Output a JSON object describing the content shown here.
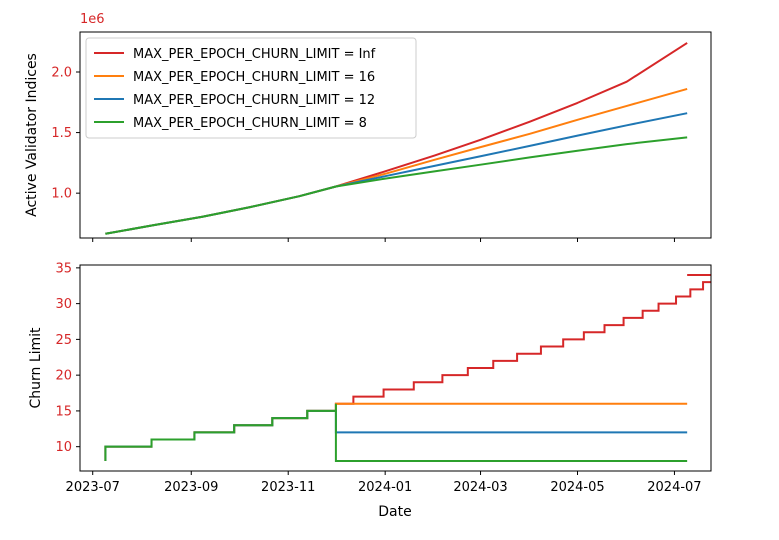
{
  "chart_data": [
    {
      "type": "line",
      "title": "",
      "xlabel": "",
      "ylabel": "Active Validator Indices",
      "offset_label": "1e6",
      "ylim": [
        0.63,
        2.33
      ],
      "yticks": [
        1.0,
        1.5,
        2.0
      ],
      "ytick_labels": [
        "1.0",
        "1.5",
        "2.0"
      ],
      "tick_color": "#d62728",
      "x_range": [
        "2023-06-23",
        "2024-07-24"
      ],
      "legend_position": "upper-left",
      "series": [
        {
          "name": "MAX_PER_EPOCH_CHURN_LIMIT = Inf",
          "color": "#d62728",
          "points": [
            [
              "2023-07-09",
              0.665
            ],
            [
              "2023-08-08",
              0.735
            ],
            [
              "2023-09-08",
              0.805
            ],
            [
              "2023-10-08",
              0.885
            ],
            [
              "2023-11-08",
              0.975
            ],
            [
              "2023-12-01",
              1.055
            ],
            [
              "2024-01-01",
              1.18
            ],
            [
              "2024-02-01",
              1.31
            ],
            [
              "2024-03-01",
              1.44
            ],
            [
              "2024-04-01",
              1.59
            ],
            [
              "2024-05-01",
              1.745
            ],
            [
              "2024-06-01",
              1.92
            ],
            [
              "2024-07-09",
              2.24
            ]
          ]
        },
        {
          "name": "MAX_PER_EPOCH_CHURN_LIMIT = 16",
          "color": "#ff7f0e",
          "points": [
            [
              "2023-07-09",
              0.665
            ],
            [
              "2023-08-08",
              0.735
            ],
            [
              "2023-09-08",
              0.805
            ],
            [
              "2023-10-08",
              0.885
            ],
            [
              "2023-11-08",
              0.975
            ],
            [
              "2023-12-01",
              1.055
            ],
            [
              "2024-01-01",
              1.16
            ],
            [
              "2024-02-01",
              1.275
            ],
            [
              "2024-03-01",
              1.38
            ],
            [
              "2024-04-01",
              1.49
            ],
            [
              "2024-05-01",
              1.605
            ],
            [
              "2024-06-01",
              1.72
            ],
            [
              "2024-07-09",
              1.86
            ]
          ]
        },
        {
          "name": "MAX_PER_EPOCH_CHURN_LIMIT = 12",
          "color": "#1f77b4",
          "points": [
            [
              "2023-07-09",
              0.665
            ],
            [
              "2023-08-08",
              0.735
            ],
            [
              "2023-09-08",
              0.805
            ],
            [
              "2023-10-08",
              0.885
            ],
            [
              "2023-11-08",
              0.975
            ],
            [
              "2023-12-01",
              1.055
            ],
            [
              "2024-01-01",
              1.14
            ],
            [
              "2024-02-01",
              1.225
            ],
            [
              "2024-03-01",
              1.305
            ],
            [
              "2024-04-01",
              1.39
            ],
            [
              "2024-05-01",
              1.475
            ],
            [
              "2024-06-01",
              1.56
            ],
            [
              "2024-07-09",
              1.66
            ]
          ]
        },
        {
          "name": "MAX_PER_EPOCH_CHURN_LIMIT = 8",
          "color": "#2ca02c",
          "points": [
            [
              "2023-07-09",
              0.665
            ],
            [
              "2023-08-08",
              0.735
            ],
            [
              "2023-09-08",
              0.805
            ],
            [
              "2023-10-08",
              0.885
            ],
            [
              "2023-11-08",
              0.975
            ],
            [
              "2023-12-01",
              1.055
            ],
            [
              "2024-01-01",
              1.12
            ],
            [
              "2024-02-01",
              1.18
            ],
            [
              "2024-03-01",
              1.235
            ],
            [
              "2024-04-01",
              1.295
            ],
            [
              "2024-05-01",
              1.35
            ],
            [
              "2024-06-01",
              1.405
            ],
            [
              "2024-07-09",
              1.46
            ]
          ]
        }
      ]
    },
    {
      "type": "line",
      "title": "",
      "xlabel": "Date",
      "ylabel": "Churn Limit",
      "ylim": [
        6.6,
        35.4
      ],
      "yticks": [
        10,
        15,
        20,
        25,
        30,
        35
      ],
      "ytick_labels": [
        "10",
        "15",
        "20",
        "25",
        "30",
        "35"
      ],
      "tick_color": "#d62728",
      "x_range": [
        "2023-06-23",
        "2024-07-24"
      ],
      "xticks": [
        "2023-07-01",
        "2023-09-01",
        "2023-11-01",
        "2024-01-01",
        "2024-03-01",
        "2024-05-01",
        "2024-07-01"
      ],
      "xtick_labels": [
        "2023-07",
        "2023-09",
        "2023-11",
        "2024-01",
        "2024-03",
        "2024-05",
        "2024-07"
      ],
      "series": [
        {
          "name": "MAX_PER_EPOCH_CHURN_LIMIT = Inf",
          "color": "#d62728",
          "steps": [
            [
              "2023-07-09",
              8
            ],
            [
              "2023-07-09",
              10
            ],
            [
              "2023-08-07",
              11
            ],
            [
              "2023-09-03",
              12
            ],
            [
              "2023-09-28",
              13
            ],
            [
              "2023-10-22",
              14
            ],
            [
              "2023-11-13",
              15
            ],
            [
              "2023-12-01",
              16
            ],
            [
              "2023-12-12",
              17
            ],
            [
              "2023-12-31",
              18
            ],
            [
              "2024-01-19",
              19
            ],
            [
              "2024-02-06",
              20
            ],
            [
              "2024-02-22",
              21
            ],
            [
              "2024-03-09",
              22
            ],
            [
              "2024-03-24",
              23
            ],
            [
              "2024-04-08",
              24
            ],
            [
              "2024-04-22",
              25
            ],
            [
              "2024-05-05",
              26
            ],
            [
              "2024-05-18",
              27
            ],
            [
              "2024-05-30",
              28
            ],
            [
              "2024-06-11",
              29
            ],
            [
              "2024-06-21",
              30
            ],
            [
              "2024-07-02",
              31
            ],
            [
              "2024-07-11",
              32
            ],
            [
              "2024-07-19",
              33
            ],
            [
              "2024-07-26",
              34
            ],
            [
              "2024-07-09",
              34
            ]
          ]
        },
        {
          "name": "MAX_PER_EPOCH_CHURN_LIMIT = 16",
          "color": "#ff7f0e",
          "steps": [
            [
              "2023-07-09",
              8
            ],
            [
              "2023-07-09",
              10
            ],
            [
              "2023-08-07",
              11
            ],
            [
              "2023-09-03",
              12
            ],
            [
              "2023-09-28",
              13
            ],
            [
              "2023-10-22",
              14
            ],
            [
              "2023-11-13",
              15
            ],
            [
              "2023-12-01",
              16
            ],
            [
              "2024-07-09",
              16
            ]
          ]
        },
        {
          "name": "MAX_PER_EPOCH_CHURN_LIMIT = 12",
          "color": "#1f77b4",
          "steps": [
            [
              "2023-07-09",
              8
            ],
            [
              "2023-07-09",
              10
            ],
            [
              "2023-08-07",
              11
            ],
            [
              "2023-09-03",
              12
            ],
            [
              "2023-09-28",
              13
            ],
            [
              "2023-10-22",
              14
            ],
            [
              "2023-11-13",
              15
            ],
            [
              "2023-12-01",
              12
            ],
            [
              "2024-07-09",
              12
            ]
          ]
        },
        {
          "name": "MAX_PER_EPOCH_CHURN_LIMIT = 8",
          "color": "#2ca02c",
          "steps": [
            [
              "2023-07-09",
              8
            ],
            [
              "2023-07-09",
              10
            ],
            [
              "2023-08-07",
              11
            ],
            [
              "2023-09-03",
              12
            ],
            [
              "2023-09-28",
              13
            ],
            [
              "2023-10-22",
              14
            ],
            [
              "2023-11-13",
              15
            ],
            [
              "2023-12-01",
              16
            ],
            [
              "2023-12-01",
              8
            ],
            [
              "2024-07-09",
              8
            ]
          ]
        }
      ]
    }
  ]
}
